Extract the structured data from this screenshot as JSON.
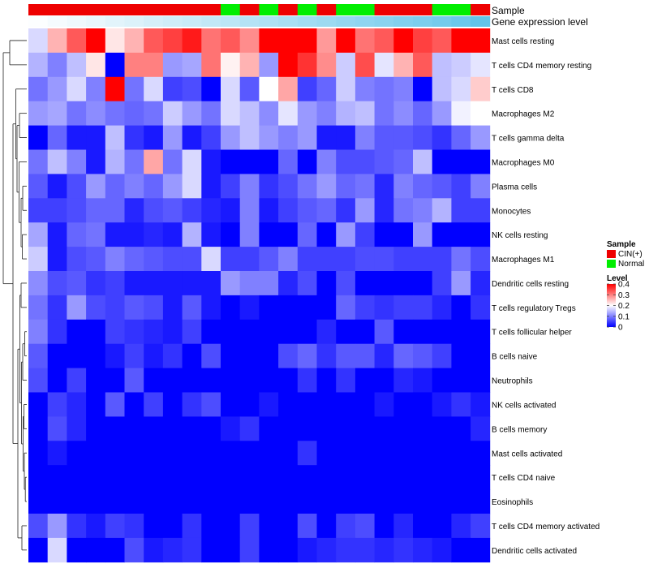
{
  "chart_data": {
    "type": "heatmap",
    "title": "",
    "annotation_rows": [
      {
        "name": "Sample"
      },
      {
        "name": "Gene expression level"
      }
    ],
    "sample_groups": [
      "CIN(+)",
      "CIN(+)",
      "CIN(+)",
      "CIN(+)",
      "CIN(+)",
      "CIN(+)",
      "CIN(+)",
      "CIN(+)",
      "CIN(+)",
      "CIN(+)",
      "Normal",
      "CIN(+)",
      "Normal",
      "CIN(+)",
      "Normal",
      "CIN(+)",
      "Normal",
      "Normal",
      "CIN(+)",
      "CIN(+)",
      "CIN(+)",
      "Normal",
      "Normal",
      "CIN(+)"
    ],
    "expression_levels": [
      0.02,
      0.06,
      0.1,
      0.14,
      0.18,
      0.22,
      0.26,
      0.3,
      0.34,
      0.38,
      0.42,
      0.46,
      0.5,
      0.54,
      0.58,
      0.62,
      0.66,
      0.7,
      0.74,
      0.78,
      0.82,
      0.86,
      0.92,
      0.98
    ],
    "expression_colors": {
      "low": "#ffffff",
      "high": "#5fc3e9"
    },
    "rows": [
      "Mast cells resting",
      "T cells CD4 memory resting",
      "T cells CD8",
      "Macrophages M2",
      "T cells gamma delta",
      "Macrophages M0",
      "Plasma cells",
      "Monocytes",
      "NK cells resting",
      "Macrophages M1",
      "Dendritic cells resting",
      "T cells regulatory  Tregs",
      "T cells follicular helper",
      "B cells naive",
      "Neutrophils",
      "NK cells activated",
      "B cells memory",
      "Mast cells activated",
      "T cells CD4 naive",
      "Eosinophils",
      "T cells CD4 memory activated",
      "Dendritic cells activated"
    ],
    "values": [
      [
        0.17,
        0.26,
        0.33,
        0.4,
        0.22,
        0.26,
        0.33,
        0.35,
        0.38,
        0.31,
        0.33,
        0.29,
        0.4,
        0.4,
        0.4,
        0.28,
        0.4,
        0.31,
        0.33,
        0.4,
        0.35,
        0.33,
        0.4,
        0.4
      ],
      [
        0.14,
        0.1,
        0.15,
        0.22,
        0.0,
        0.3,
        0.3,
        0.12,
        0.13,
        0.31,
        0.21,
        0.26,
        0.12,
        0.4,
        0.36,
        0.29,
        0.16,
        0.34,
        0.18,
        0.26,
        0.33,
        0.15,
        0.16,
        0.18
      ],
      [
        0.09,
        0.12,
        0.17,
        0.1,
        0.4,
        0.09,
        0.17,
        0.05,
        0.06,
        0.0,
        0.17,
        0.07,
        0.2,
        0.27,
        0.05,
        0.08,
        0.16,
        0.1,
        0.09,
        0.1,
        0.0,
        0.15,
        0.17,
        0.24
      ],
      [
        0.12,
        0.13,
        0.09,
        0.11,
        0.09,
        0.08,
        0.09,
        0.16,
        0.12,
        0.09,
        0.17,
        0.15,
        0.11,
        0.18,
        0.12,
        0.1,
        0.14,
        0.15,
        0.09,
        0.11,
        0.08,
        0.12,
        0.19,
        0.2
      ],
      [
        0.0,
        0.08,
        0.02,
        0.02,
        0.15,
        0.04,
        0.02,
        0.12,
        0.02,
        0.05,
        0.12,
        0.15,
        0.12,
        0.1,
        0.12,
        0.02,
        0.02,
        0.1,
        0.07,
        0.07,
        0.06,
        0.04,
        0.08,
        0.12
      ],
      [
        0.09,
        0.15,
        0.1,
        0.02,
        0.14,
        0.09,
        0.27,
        0.09,
        0.17,
        0.02,
        0.0,
        0.0,
        0.0,
        0.08,
        0.0,
        0.1,
        0.06,
        0.06,
        0.07,
        0.08,
        0.15,
        0.0,
        0.0,
        0.0
      ],
      [
        0.07,
        0.02,
        0.06,
        0.12,
        0.08,
        0.1,
        0.08,
        0.12,
        0.17,
        0.02,
        0.05,
        0.1,
        0.04,
        0.06,
        0.09,
        0.12,
        0.08,
        0.09,
        0.03,
        0.1,
        0.08,
        0.07,
        0.05,
        0.1
      ],
      [
        0.05,
        0.05,
        0.06,
        0.08,
        0.08,
        0.03,
        0.06,
        0.07,
        0.05,
        0.03,
        0.02,
        0.1,
        0.02,
        0.05,
        0.07,
        0.08,
        0.04,
        0.12,
        0.03,
        0.09,
        0.1,
        0.14,
        0.05,
        0.05
      ],
      [
        0.13,
        0.02,
        0.08,
        0.09,
        0.02,
        0.02,
        0.03,
        0.02,
        0.14,
        0.02,
        0.0,
        0.1,
        0.0,
        0.0,
        0.08,
        0.0,
        0.12,
        0.05,
        0.0,
        0.0,
        0.12,
        0.0,
        0.0,
        0.0
      ],
      [
        0.16,
        0.02,
        0.06,
        0.07,
        0.1,
        0.08,
        0.07,
        0.06,
        0.06,
        0.17,
        0.05,
        0.05,
        0.07,
        0.1,
        0.05,
        0.05,
        0.05,
        0.06,
        0.06,
        0.05,
        0.05,
        0.05,
        0.09,
        0.06
      ],
      [
        0.11,
        0.06,
        0.07,
        0.04,
        0.05,
        0.02,
        0.02,
        0.02,
        0.02,
        0.02,
        0.12,
        0.1,
        0.1,
        0.03,
        0.06,
        0.0,
        0.06,
        0.0,
        0.0,
        0.0,
        0.0,
        0.05,
        0.12,
        0.03
      ],
      [
        0.09,
        0.04,
        0.12,
        0.06,
        0.05,
        0.07,
        0.06,
        0.02,
        0.07,
        0.02,
        0.0,
        0.02,
        0.0,
        0.0,
        0.0,
        0.0,
        0.08,
        0.05,
        0.04,
        0.05,
        0.05,
        0.03,
        0.0,
        0.04
      ],
      [
        0.1,
        0.04,
        0.0,
        0.0,
        0.05,
        0.04,
        0.03,
        0.02,
        0.05,
        0.0,
        0.0,
        0.0,
        0.0,
        0.0,
        0.0,
        0.03,
        0.0,
        0.0,
        0.07,
        0.0,
        0.0,
        0.0,
        0.0,
        0.0
      ],
      [
        0.07,
        0.0,
        0.0,
        0.0,
        0.02,
        0.05,
        0.02,
        0.04,
        0.0,
        0.06,
        0.0,
        0.0,
        0.0,
        0.06,
        0.08,
        0.04,
        0.07,
        0.07,
        0.03,
        0.08,
        0.07,
        0.05,
        0.0,
        0.0
      ],
      [
        0.06,
        0.0,
        0.05,
        0.0,
        0.0,
        0.07,
        0.0,
        0.0,
        0.0,
        0.0,
        0.0,
        0.0,
        0.0,
        0.0,
        0.04,
        0.0,
        0.04,
        0.0,
        0.0,
        0.03,
        0.02,
        0.0,
        0.0,
        0.0
      ],
      [
        0.0,
        0.05,
        0.03,
        0.0,
        0.07,
        0.0,
        0.05,
        0.0,
        0.04,
        0.06,
        0.0,
        0.0,
        0.02,
        0.0,
        0.0,
        0.0,
        0.0,
        0.0,
        0.02,
        0.0,
        0.0,
        0.02,
        0.04,
        0.02
      ],
      [
        0.0,
        0.06,
        0.03,
        0.0,
        0.0,
        0.0,
        0.0,
        0.0,
        0.0,
        0.0,
        0.02,
        0.04,
        0.0,
        0.0,
        0.0,
        0.0,
        0.0,
        0.0,
        0.0,
        0.0,
        0.0,
        0.0,
        0.0,
        0.03
      ],
      [
        0.0,
        0.02,
        0.0,
        0.0,
        0.0,
        0.0,
        0.0,
        0.0,
        0.0,
        0.0,
        0.0,
        0.0,
        0.0,
        0.0,
        0.04,
        0.0,
        0.0,
        0.0,
        0.0,
        0.0,
        0.0,
        0.0,
        0.0,
        0.0
      ],
      [
        0.0,
        0.0,
        0.0,
        0.0,
        0.0,
        0.0,
        0.0,
        0.0,
        0.0,
        0.0,
        0.0,
        0.0,
        0.0,
        0.0,
        0.0,
        0.0,
        0.0,
        0.0,
        0.0,
        0.0,
        0.0,
        0.0,
        0.0,
        0.0
      ],
      [
        0.0,
        0.0,
        0.0,
        0.0,
        0.0,
        0.0,
        0.0,
        0.0,
        0.0,
        0.0,
        0.0,
        0.0,
        0.0,
        0.0,
        0.0,
        0.0,
        0.0,
        0.0,
        0.0,
        0.0,
        0.0,
        0.0,
        0.0,
        0.0
      ],
      [
        0.06,
        0.12,
        0.04,
        0.02,
        0.05,
        0.04,
        0.0,
        0.0,
        0.04,
        0.0,
        0.0,
        0.05,
        0.0,
        0.0,
        0.06,
        0.0,
        0.05,
        0.06,
        0.0,
        0.03,
        0.0,
        0.0,
        0.03,
        0.05
      ],
      [
        0.0,
        0.17,
        0.0,
        0.0,
        0.0,
        0.06,
        0.02,
        0.03,
        0.04,
        0.0,
        0.0,
        0.05,
        0.0,
        0.0,
        0.02,
        0.03,
        0.04,
        0.04,
        0.03,
        0.04,
        0.03,
        0.02,
        0.0,
        0.0
      ]
    ],
    "legend": {
      "sample_title": "Sample",
      "sample_items": [
        {
          "label": "CIN(+)",
          "color": "#ee0000"
        },
        {
          "label": "Normal",
          "color": "#00ee00"
        }
      ],
      "level_title": "Level",
      "level_ticks": [
        "0.4",
        "0.3",
        "0.2",
        "0.1",
        "0"
      ],
      "level_tick_values": [
        0.4,
        0.3,
        0.2,
        0.1,
        0
      ],
      "level_range": [
        0,
        0.4
      ]
    },
    "colors": {
      "low": "#0000ff",
      "mid": "#ffffff",
      "high": "#ff0000"
    }
  }
}
